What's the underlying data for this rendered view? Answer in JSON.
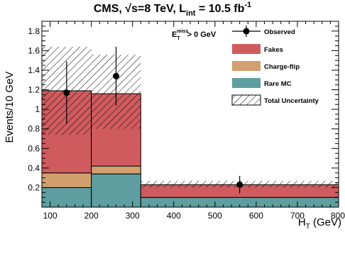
{
  "chart_data": {
    "type": "bar",
    "title_parts": {
      "prefix": "CMS, ",
      "sqrt": "√s",
      "energy": "=8 TeV, L",
      "lumi_sub": "int",
      "lumi_val": " = 10.5 fb",
      "lumi_sup": "-1"
    },
    "annotation": {
      "main": "E",
      "sup": "miss",
      "sub": "T",
      "rest": "> 0 GeV"
    },
    "xlabel": "H",
    "xlabel_sub": "T",
    "xlabel_unit": " (GeV)",
    "ylabel": "Events/10 GeV",
    "xlim": [
      80,
      800
    ],
    "ylim": [
      0,
      1.9
    ],
    "xticks": [
      100,
      200,
      300,
      400,
      500,
      600,
      700,
      800
    ],
    "yticks": [
      0.2,
      0.4,
      0.6,
      0.8,
      1,
      1.2,
      1.4,
      1.6,
      1.8
    ],
    "bins": [
      [
        80,
        200
      ],
      [
        200,
        320
      ],
      [
        320,
        800
      ]
    ],
    "stack": [
      {
        "name": "Rare MC",
        "color": "#5f9ea0",
        "values": [
          0.2,
          0.34,
          0.1
        ]
      },
      {
        "name": "Charge-flip",
        "color": "#d2a06e",
        "values": [
          0.15,
          0.08,
          0.0
        ]
      },
      {
        "name": "Fakes",
        "color": "#d05b5e",
        "values": [
          0.84,
          0.74,
          0.13
        ]
      }
    ],
    "uncertainty": {
      "name": "Total Uncertainty",
      "lower": [
        0.74,
        0.8,
        0.2
      ],
      "upper": [
        1.64,
        1.56,
        0.27
      ]
    },
    "observed": {
      "name": "Observed",
      "x": [
        140,
        260,
        560
      ],
      "y": [
        1.17,
        1.34,
        0.23
      ],
      "err_low": [
        0.32,
        0.3,
        0.09
      ],
      "err_high": [
        0.32,
        0.3,
        0.09
      ]
    },
    "legend": [
      "Observed",
      "Fakes",
      "Charge-flip",
      "Rare MC",
      "Total Uncertainty"
    ],
    "legend_position": "top-right"
  }
}
